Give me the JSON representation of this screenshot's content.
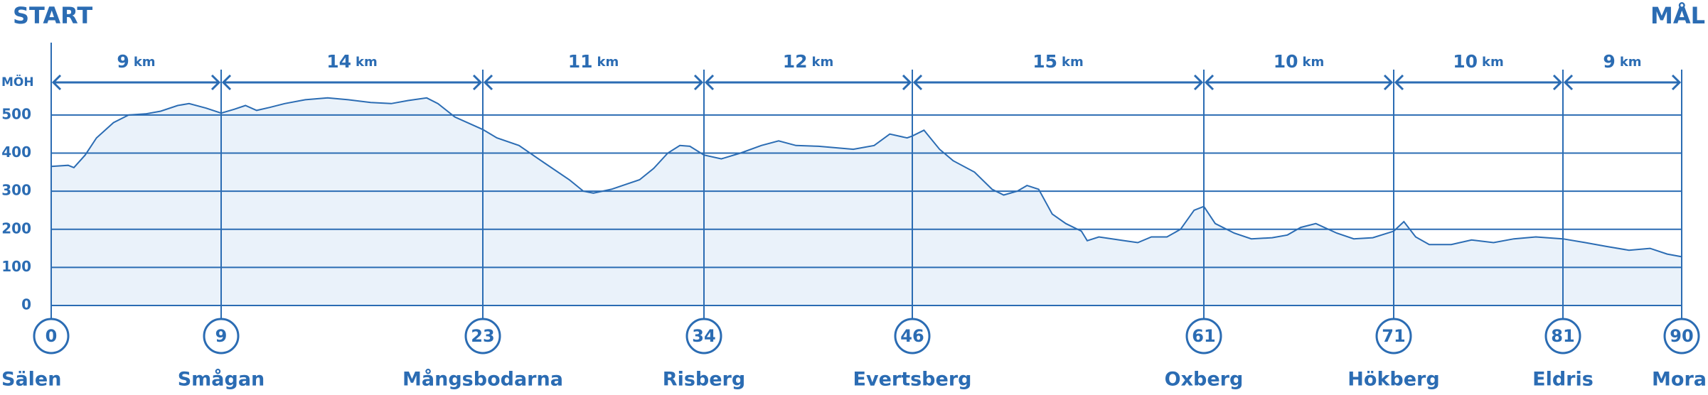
{
  "chart_data": {
    "type": "area",
    "start_label": "START",
    "end_label": "MÅL",
    "ylabel": "MÖH",
    "ylim": [
      0,
      690
    ],
    "yticks": [
      0,
      100,
      200,
      300,
      400,
      500
    ],
    "xlim": [
      0,
      90
    ],
    "grid": true,
    "color": "#2b6cb3",
    "fill": "#eaf2fa",
    "unit": "km",
    "segments": [
      9,
      14,
      11,
      12,
      15,
      10,
      10,
      9
    ],
    "checkpoints": {
      "km": [
        0,
        9,
        23,
        34,
        46,
        61,
        71,
        81,
        90
      ],
      "names": [
        "Sälen",
        "Smågan",
        "Mångsbodarna",
        "Risberg",
        "Evertsberg",
        "Oxberg",
        "Hökberg",
        "Eldris",
        "Mora"
      ]
    },
    "x": [
      0,
      0.9,
      1.2,
      1.8,
      2.4,
      3.3,
      4.1,
      5.0,
      5.8,
      6.7,
      7.3,
      8.2,
      9.0,
      9.7,
      10.3,
      10.9,
      11.6,
      12.4,
      13.5,
      14.7,
      15.8,
      17.0,
      18.1,
      19.0,
      20.0,
      20.6,
      21.5,
      23.0,
      23.7,
      24.8,
      25.9,
      27.3,
      28.0,
      28.5,
      29.4,
      30.8,
      31.5,
      32.2,
      32.8,
      33.3,
      34.0,
      35.0,
      36.1,
      37.3,
      38.3,
      39.3,
      40.6,
      42.6,
      43.8,
      44.7,
      45.7,
      46.0,
      46.6,
      47.4,
      48.1,
      49.2,
      50.1,
      50.7,
      51.4,
      51.9,
      52.5,
      53.2,
      53.9,
      54.7,
      55.0,
      55.6,
      56.9,
      57.6,
      58.3,
      59.1,
      59.8,
      60.5,
      61.0,
      61.6,
      62.6,
      63.5,
      64.6,
      65.4,
      66.1,
      66.9,
      68.0,
      68.9,
      69.9,
      71.0,
      71.6,
      72.3,
      73.1,
      74.4,
      75.6,
      76.9,
      78.1,
      79.4,
      81.0,
      82.7,
      84.3,
      86.0,
      87.6,
      88.9,
      90.0
    ],
    "values": [
      365,
      368,
      362,
      395,
      440,
      480,
      500,
      503,
      510,
      525,
      530,
      518,
      505,
      515,
      525,
      512,
      520,
      530,
      540,
      545,
      540,
      533,
      530,
      538,
      545,
      530,
      495,
      462,
      440,
      420,
      380,
      330,
      300,
      295,
      305,
      330,
      360,
      400,
      420,
      418,
      395,
      385,
      400,
      420,
      432,
      420,
      418,
      410,
      420,
      450,
      440,
      445,
      460,
      410,
      380,
      350,
      305,
      290,
      300,
      315,
      305,
      240,
      215,
      195,
      170,
      180,
      170,
      165,
      180,
      180,
      200,
      250,
      260,
      215,
      190,
      175,
      178,
      185,
      205,
      215,
      190,
      175,
      178,
      195,
      220,
      180,
      160,
      160,
      172,
      165,
      175,
      180,
      175,
      165,
      155,
      145,
      150,
      135,
      128
    ]
  }
}
